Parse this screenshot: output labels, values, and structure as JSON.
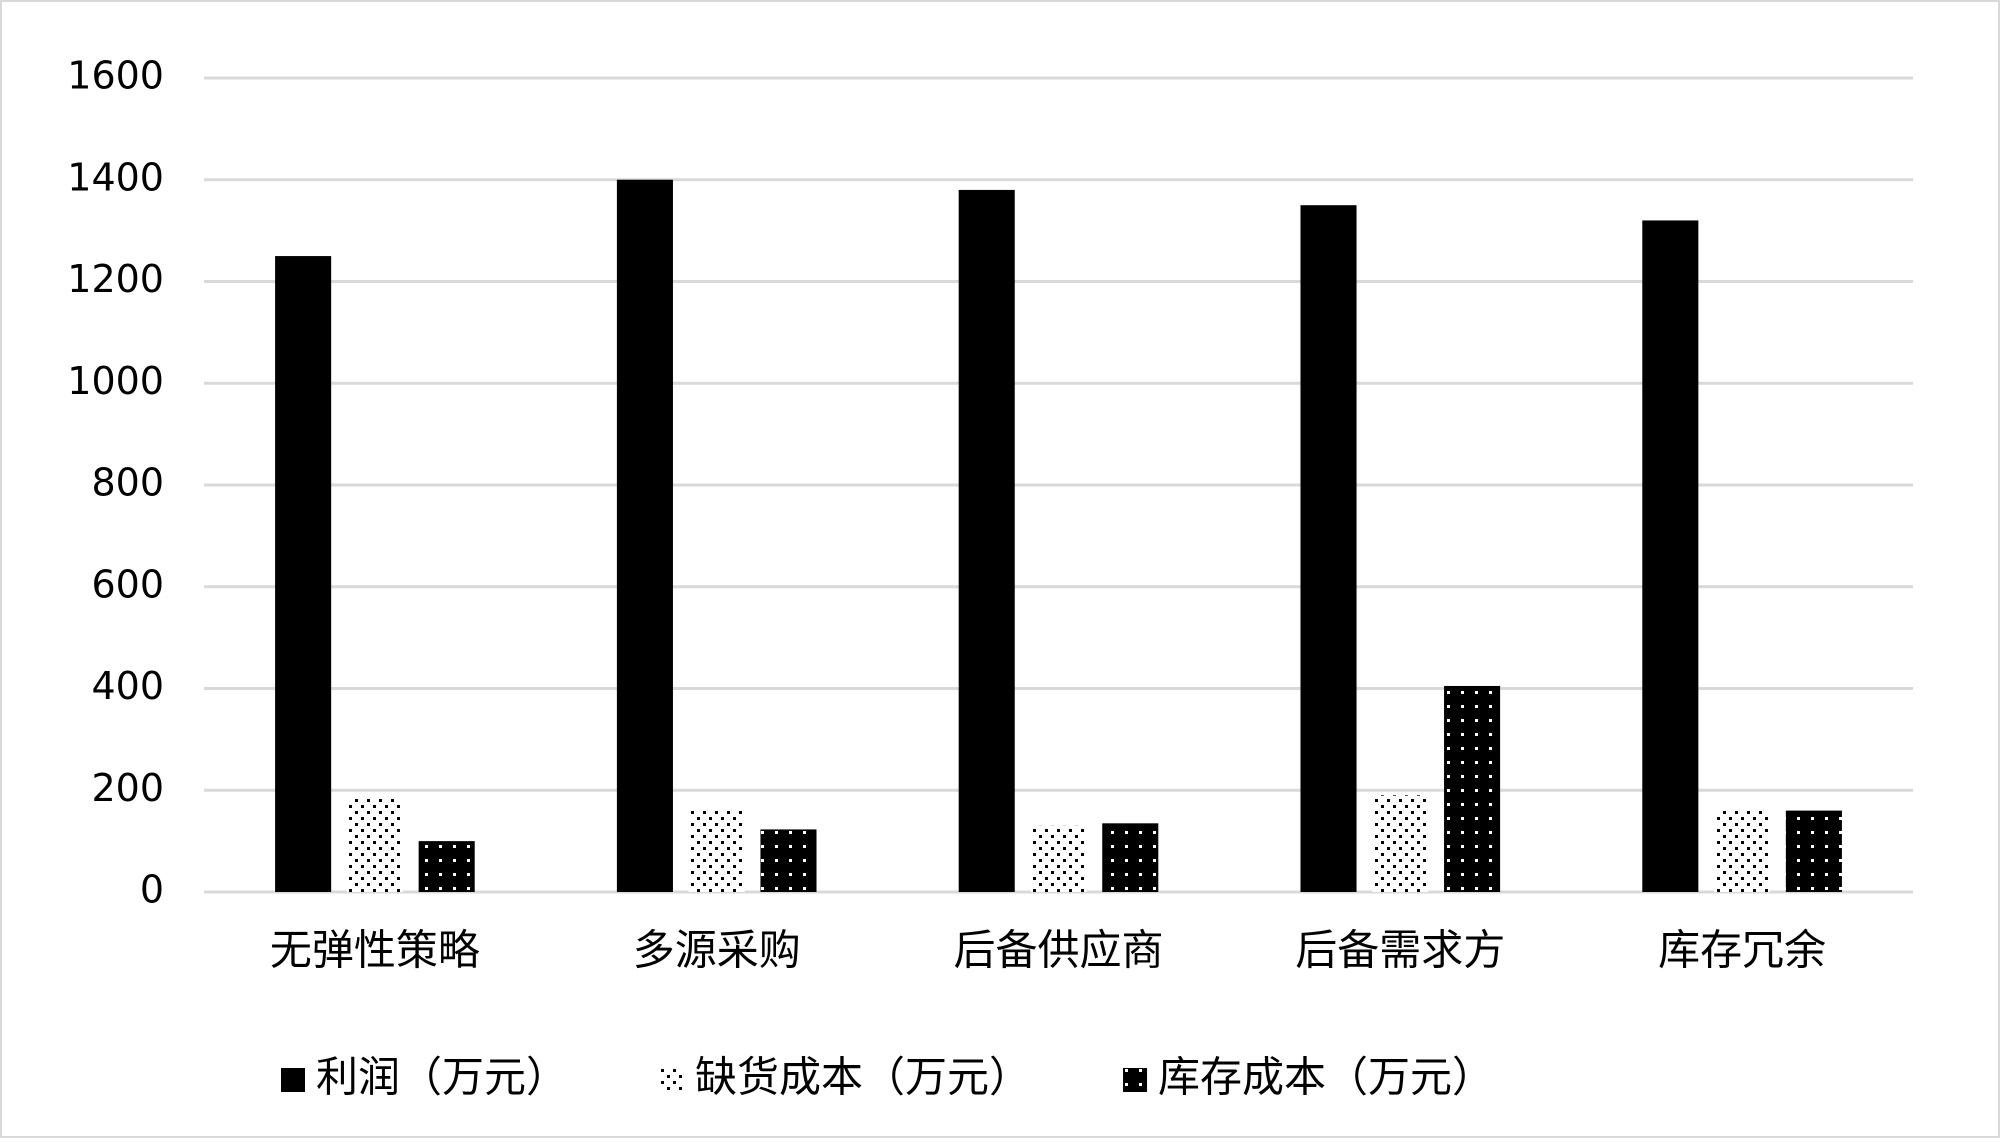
{
  "chart_data": {
    "type": "bar",
    "categories": [
      "无弹性策略",
      "多源采购",
      "后备供应商",
      "后备需求方",
      "库存冗余"
    ],
    "series": [
      {
        "name": "利润（万元）",
        "color": "#000000",
        "pattern": "solid",
        "values": [
          1250,
          1400,
          1380,
          1350,
          1320
        ]
      },
      {
        "name": "缺货成本（万元）",
        "color": "#000000",
        "pattern": "dots-light",
        "values": [
          185,
          160,
          130,
          190,
          160
        ]
      },
      {
        "name": "库存成本（万元）",
        "color": "#000000",
        "pattern": "dots-dark",
        "values": [
          100,
          123,
          135,
          405,
          160
        ]
      }
    ],
    "ylim": [
      0,
      1600
    ],
    "yticks": [
      0,
      200,
      400,
      600,
      800,
      1000,
      1200,
      1400,
      1600
    ],
    "grid": true,
    "legend": "bottom"
  }
}
